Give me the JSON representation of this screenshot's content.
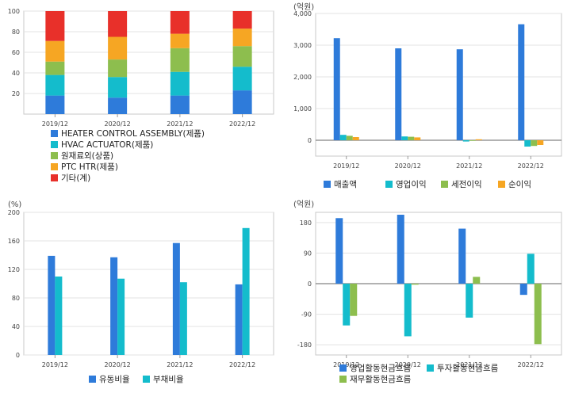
{
  "chart_data": [
    {
      "id": "product_mix",
      "type": "bar",
      "stacked": true,
      "categories": [
        "2019/12",
        "2020/12",
        "2021/12",
        "2022/12"
      ],
      "ylim": [
        0,
        100
      ],
      "yticks": [
        20,
        40,
        60,
        80,
        100
      ],
      "unit": "",
      "legend_position": "bottom-left",
      "series": [
        {
          "name": "HEATER CONTROL ASSEMBLY(제품)",
          "color": "#2E7BDA",
          "values": [
            18,
            16,
            18,
            23
          ]
        },
        {
          "name": "HVAC ACTUATOR(제품)",
          "color": "#14BCCC",
          "values": [
            20,
            20,
            23,
            23
          ]
        },
        {
          "name": "원재료외(상품)",
          "color": "#8DBE4E",
          "values": [
            13,
            17,
            23,
            20
          ]
        },
        {
          "name": "PTC HTR(제품)",
          "color": "#F6A623",
          "values": [
            20,
            22,
            14,
            17
          ]
        },
        {
          "name": "기타(계)",
          "color": "#E8302A",
          "values": [
            29,
            25,
            22,
            17
          ]
        }
      ]
    },
    {
      "id": "income",
      "type": "bar",
      "categories": [
        "2019/12",
        "2020/12",
        "2021/12",
        "2022/12"
      ],
      "ylim": [
        -500,
        4000
      ],
      "yticks": [
        0,
        1000,
        2000,
        3000,
        4000
      ],
      "ytick_labels": [
        "0",
        "1,000",
        "2,000",
        "3,000",
        "4,000"
      ],
      "unit": "(억원)",
      "legend_position": "bottom",
      "series": [
        {
          "name": "매출액",
          "color": "#2E7BDA",
          "values": [
            3220,
            2900,
            2870,
            3660
          ]
        },
        {
          "name": "영업이익",
          "color": "#14BCCC",
          "values": [
            170,
            120,
            -40,
            -200
          ]
        },
        {
          "name": "세전이익",
          "color": "#8DBE4E",
          "values": [
            140,
            110,
            0,
            -180
          ]
        },
        {
          "name": "순이익",
          "color": "#F6A623",
          "values": [
            100,
            90,
            30,
            -150
          ]
        }
      ]
    },
    {
      "id": "ratios",
      "type": "bar",
      "categories": [
        "2019/12",
        "2020/12",
        "2021/12",
        "2022/12"
      ],
      "ylim": [
        0,
        200
      ],
      "yticks": [
        0,
        40,
        80,
        120,
        160,
        200
      ],
      "unit": "(%)",
      "legend_position": "bottom",
      "series": [
        {
          "name": "유동비율",
          "color": "#2E7BDA",
          "values": [
            139,
            137,
            157,
            99
          ]
        },
        {
          "name": "부채비율",
          "color": "#14BCCC",
          "values": [
            110,
            107,
            102,
            178
          ]
        }
      ]
    },
    {
      "id": "cashflow",
      "type": "bar",
      "categories": [
        "2019/12",
        "2020/12",
        "2021/12",
        "2022/12"
      ],
      "ylim": [
        -210,
        210
      ],
      "yticks": [
        -180,
        -90,
        0,
        90,
        180
      ],
      "unit": "(억원)",
      "legend_position": "bottom",
      "series": [
        {
          "name": "영업활동현금흐름",
          "color": "#2E7BDA",
          "values": [
            193,
            203,
            162,
            -33
          ]
        },
        {
          "name": "투자활동현금흐름",
          "color": "#14BCCC",
          "values": [
            -123,
            -155,
            -100,
            88
          ]
        },
        {
          "name": "재무활동현금흐름",
          "color": "#8DBE4E",
          "values": [
            -95,
            -3,
            20,
            -178
          ]
        }
      ]
    }
  ]
}
